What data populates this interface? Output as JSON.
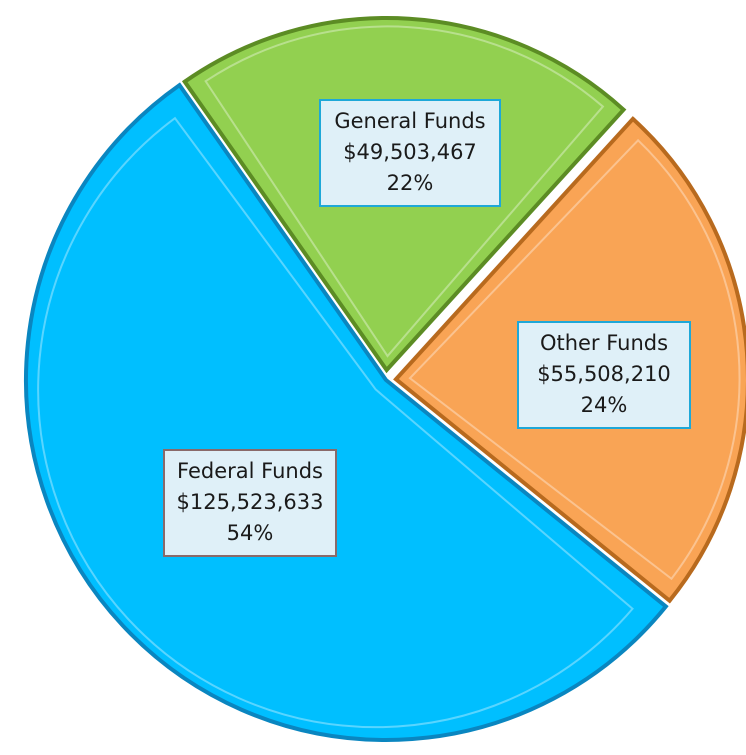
{
  "chart_data": {
    "type": "pie",
    "slices": [
      {
        "label": "Federal Funds",
        "value_text": "$125,523,633",
        "percent_text": "54%",
        "value": 125523633,
        "color": "#00bfff",
        "edge": "#0a86c0",
        "box_border": "#8a6a6a"
      },
      {
        "label": "General Funds",
        "value_text": "$49,503,467",
        "percent_text": "22%",
        "value": 49503467,
        "color": "#92d050",
        "edge": "#5c8c24",
        "box_border": "#1ea8d8"
      },
      {
        "label": "Other Funds",
        "value_text": "$55,508,210",
        "percent_text": "24%",
        "value": 55508210,
        "color": "#f9a455",
        "edge": "#b86a1e",
        "box_border": "#1ea8d8"
      }
    ],
    "legend": "none",
    "data_labels": "inside"
  }
}
